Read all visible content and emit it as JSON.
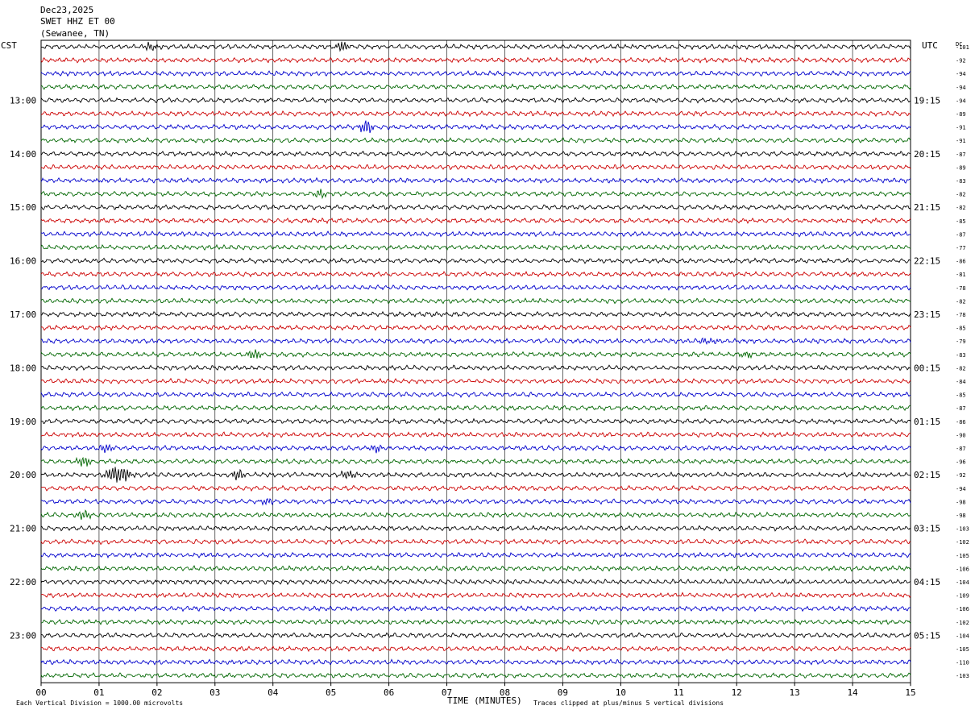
{
  "header": {
    "date": "Dec23,2025",
    "station": "SWET HHZ ET 00",
    "location": "(Sewanee, TN)"
  },
  "chart_data": {
    "type": "line",
    "title": "Dec23,2025  SWET HHZ ET 00  (Sewanee, TN)",
    "left_timezone": "CST",
    "right_timezone": "UTC",
    "dc_label": "DC",
    "xlabel": "TIME (MINUTES)",
    "x_ticks": [
      "00",
      "01",
      "02",
      "03",
      "04",
      "05",
      "06",
      "07",
      "08",
      "09",
      "10",
      "11",
      "12",
      "13",
      "14",
      "15"
    ],
    "xlim": [
      0,
      15
    ],
    "trace_colors": [
      "#000000",
      "#cc0000",
      "#0000cc",
      "#006600"
    ],
    "hour_labels_left": [
      "13:00",
      "14:00",
      "15:00",
      "16:00",
      "17:00",
      "18:00",
      "19:00",
      "20:00",
      "21:00",
      "22:00",
      "23:00"
    ],
    "hour_labels_right": [
      "19:15",
      "20:15",
      "21:15",
      "22:15",
      "23:15",
      "00:15",
      "01:15",
      "02:15",
      "03:15",
      "04:15",
      "05:15"
    ],
    "dc_offsets": [
      "-101",
      "-92",
      "-94",
      "-94",
      "-94",
      "-89",
      "-91",
      "-91",
      "-87",
      "-89",
      "-83",
      "-82",
      "-82",
      "-85",
      "-87",
      "-77",
      "-86",
      "-81",
      "-78",
      "-82",
      "-78",
      "-85",
      "-79",
      "-83",
      "-82",
      "-84",
      "-85",
      "-87",
      "-86",
      "-90",
      "-87",
      "-96",
      "-92",
      "-94",
      "-98",
      "-98",
      "-103",
      "-102",
      "-105",
      "-106",
      "-104",
      "-109",
      "-106",
      "-102",
      "-104",
      "-105",
      "-110",
      "-103"
    ],
    "events": [
      {
        "row": 0,
        "minute": 5.2,
        "amplitude": 2.2
      },
      {
        "row": 0,
        "minute": 1.9,
        "amplitude": 1.4
      },
      {
        "row": 6,
        "minute": 5.6,
        "amplitude": 3.0
      },
      {
        "row": 11,
        "minute": 4.8,
        "amplitude": 1.6
      },
      {
        "row": 22,
        "minute": 11.5,
        "amplitude": 1.5
      },
      {
        "row": 23,
        "minute": 3.7,
        "amplitude": 1.8
      },
      {
        "row": 23,
        "minute": 12.2,
        "amplitude": 1.6
      },
      {
        "row": 30,
        "minute": 1.1,
        "amplitude": 1.5
      },
      {
        "row": 30,
        "minute": 5.8,
        "amplitude": 1.4
      },
      {
        "row": 31,
        "minute": 0.75,
        "amplitude": 2.0
      },
      {
        "row": 32,
        "minute": 1.25,
        "amplitude": 3.2
      },
      {
        "row": 32,
        "minute": 1.45,
        "amplitude": 2.4
      },
      {
        "row": 32,
        "minute": 3.4,
        "amplitude": 1.8
      },
      {
        "row": 32,
        "minute": 5.3,
        "amplitude": 2.0
      },
      {
        "row": 34,
        "minute": 3.9,
        "amplitude": 1.4
      },
      {
        "row": 35,
        "minute": 0.75,
        "amplitude": 1.8
      }
    ],
    "footer_left": "Each Vertical Division = 1000.00 microvolts",
    "footer_right": "Traces clipped at plus/minus 5 vertical divisions"
  }
}
